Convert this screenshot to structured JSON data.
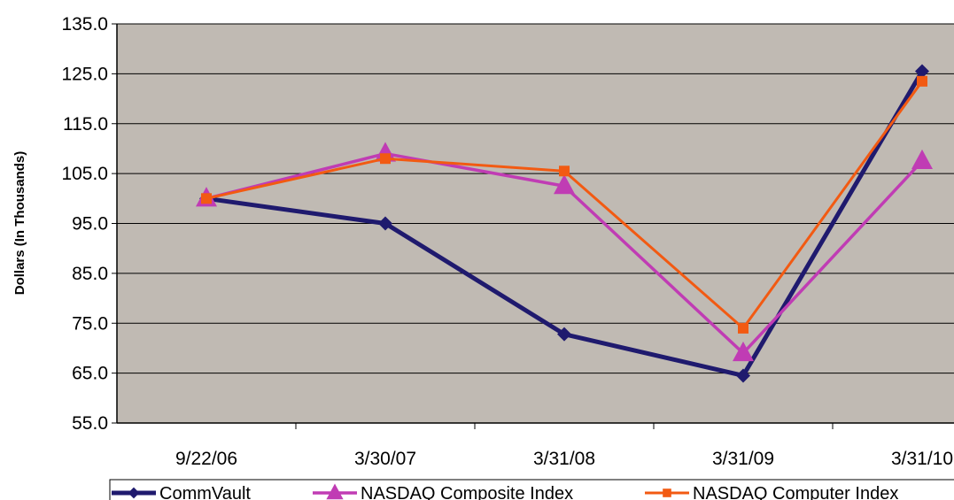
{
  "chart_data": {
    "type": "line",
    "title": "",
    "xlabel": "",
    "ylabel": "Dollars (In Thousands)",
    "categories": [
      "9/22/06",
      "3/30/07",
      "3/31/08",
      "3/31/09",
      "3/31/10"
    ],
    "ylim": [
      55,
      135
    ],
    "yticks": [
      "55.0",
      "65.0",
      "75.0",
      "85.0",
      "95.0",
      "105.0",
      "115.0",
      "125.0",
      "135.0"
    ],
    "grid": true,
    "legend": "bottom",
    "plot_background": "#c0bab3",
    "series": [
      {
        "name": "CommVault",
        "values": [
          100.0,
          95.0,
          72.8,
          64.5,
          125.5
        ],
        "color": "#1f1a6e",
        "marker": "diamond"
      },
      {
        "name": "NASDAQ Composite Index",
        "values": [
          100.0,
          109.0,
          102.5,
          69.0,
          107.5
        ],
        "color": "#c03cb4",
        "marker": "triangle"
      },
      {
        "name": "NASDAQ Computer Index",
        "values": [
          100.0,
          108.0,
          105.5,
          74.0,
          123.5
        ],
        "color": "#f25a12",
        "marker": "square"
      }
    ]
  }
}
